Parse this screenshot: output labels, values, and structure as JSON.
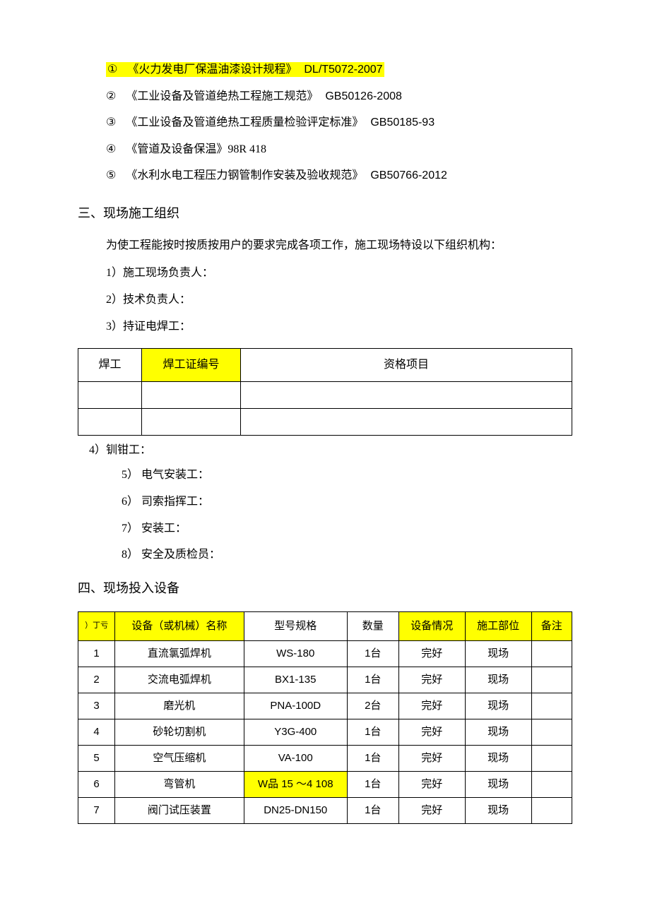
{
  "colors": {
    "highlight": "#ffff00",
    "text": "#000000",
    "background": "#ffffff",
    "border": "#000000"
  },
  "standards": [
    {
      "num": "①",
      "title": "《火力发电厂保温油漆设计规程》",
      "code": "DL/T5072-2007",
      "highlight": true
    },
    {
      "num": "②",
      "title": "《工业设备及管道绝热工程施工规范》",
      "code": "GB50126-2008",
      "highlight": false
    },
    {
      "num": "③",
      "title": "《工业设备及管道绝热工程质量检验评定标准》",
      "code": "GB50185-93",
      "highlight": false
    },
    {
      "num": "④",
      "title": "《管道及设备保温》98R 418",
      "code": "",
      "highlight": false
    },
    {
      "num": "⑤",
      "title": "《水利水电工程压力钢管制作安装及验收规范》",
      "code": "GB50766-2012",
      "highlight": false
    }
  ],
  "section3": {
    "heading": "三、现场施工组织",
    "intro": "为使工程能按时按质按用户的要求完成各项工作，施工现场特设以下组织机构：",
    "items_a": [
      "1）施工现场负责人：",
      "2）技术负责人：",
      "3）持证电焊工："
    ],
    "item4": "4）钏钳工：",
    "items_b": [
      "5） 电气安装工：",
      "6） 司索指挥工：",
      "7） 安装工：",
      "8） 安全及质检员："
    ]
  },
  "welder_table": {
    "headers": {
      "c1": "焊工",
      "c2": "焊工证编号",
      "c3": "资格项目"
    },
    "c2_highlight": true,
    "rows": [
      {
        "c1": "",
        "c2": "",
        "c3": ""
      },
      {
        "c1": "",
        "c2": "",
        "c3": ""
      }
    ]
  },
  "section4": {
    "heading": "四、现场投入设备"
  },
  "equipment_table": {
    "headers": {
      "c1_sub": "）丁亏",
      "c2": "设备（或机械）名称",
      "c3": "型号规格",
      "c4": "数量",
      "c5": "设备情况",
      "c6": "施工部位",
      "c7": "备注"
    },
    "header_highlight": {
      "c1": true,
      "c2": true,
      "c5": true,
      "c6": true,
      "c7": true
    },
    "rows": [
      {
        "n": "1",
        "name": "直流氯弧焊机",
        "model": "WS-180",
        "qty": "1台",
        "cond": "完好",
        "loc": "现场",
        "note": "",
        "hl_model": false
      },
      {
        "n": "2",
        "name": "交流电弧焊机",
        "model": "BX1-135",
        "qty": "1台",
        "cond": "完好",
        "loc": "现场",
        "note": "",
        "hl_model": false
      },
      {
        "n": "3",
        "name": "磨光机",
        "model": "PNA-100D",
        "qty": "2台",
        "cond": "完好",
        "loc": "现场",
        "note": "",
        "hl_model": false
      },
      {
        "n": "4",
        "name": "砂轮切割机",
        "model": "Y3G-400",
        "qty": "1台",
        "cond": "完好",
        "loc": "现场",
        "note": "",
        "hl_model": false
      },
      {
        "n": "5",
        "name": "空气压缩机",
        "model": "VA-100",
        "qty": "1台",
        "cond": "完好",
        "loc": "现场",
        "note": "",
        "hl_model": false
      },
      {
        "n": "6",
        "name": "弯管机",
        "model": "W品 15 〜4 108",
        "qty": "1台",
        "cond": "完好",
        "loc": "现场",
        "note": "",
        "hl_model": true
      },
      {
        "n": "7",
        "name": "阀门试压装置",
        "model": "DN25-DN150",
        "qty": "1台",
        "cond": "完好",
        "loc": "现场",
        "note": "",
        "hl_model": false
      }
    ]
  }
}
